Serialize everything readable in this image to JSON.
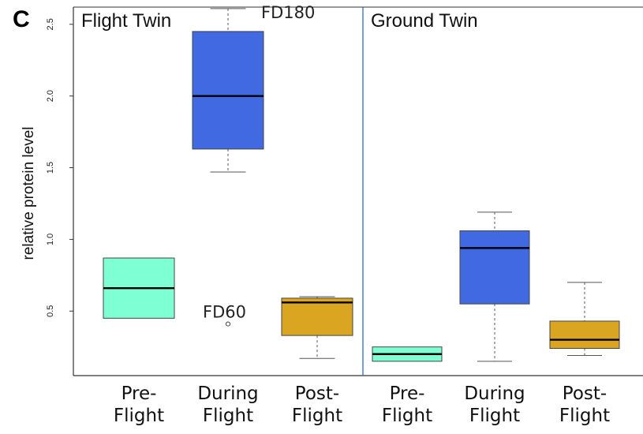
{
  "panel_letter": "C",
  "chart_data": {
    "type": "box",
    "ylabel": "relative protein level",
    "ylim": [
      0.05,
      2.62
    ],
    "yticks": [
      0.5,
      1.0,
      1.5,
      2.0,
      2.5
    ],
    "ytick_labels": [
      "0.5",
      "1.0",
      "1.5",
      "2.0",
      "2.5"
    ],
    "panels": [
      {
        "title": "Flight Twin",
        "categories": [
          {
            "line1": "Pre-",
            "line2": "Flight"
          },
          {
            "line1": "During",
            "line2": "Flight"
          },
          {
            "line1": "Post-",
            "line2": "Flight"
          }
        ],
        "boxes": [
          {
            "whisker_low": 0.45,
            "q1": 0.45,
            "median": 0.66,
            "q3": 0.87,
            "whisker_high": 0.87,
            "outliers": [],
            "color": "#7fffd4"
          },
          {
            "whisker_low": 1.47,
            "q1": 1.63,
            "median": 2.0,
            "q3": 2.45,
            "whisker_high": 2.61,
            "outliers": [
              0.41
            ],
            "color": "#4169e1"
          },
          {
            "whisker_low": 0.17,
            "q1": 0.33,
            "median": 0.56,
            "q3": 0.59,
            "whisker_high": 0.6,
            "outliers": [],
            "color": "#daa520"
          }
        ],
        "annotations": [
          {
            "text": "FD180",
            "box": 1,
            "value": 2.61
          },
          {
            "text": "FD60",
            "box": 1,
            "value": 0.41
          }
        ]
      },
      {
        "title": "Ground Twin",
        "categories": [
          {
            "line1": "Pre-",
            "line2": "Flight"
          },
          {
            "line1": "During",
            "line2": "Flight"
          },
          {
            "line1": "Post-",
            "line2": "Flight"
          }
        ],
        "boxes": [
          {
            "whisker_low": 0.15,
            "q1": 0.15,
            "median": 0.2,
            "q3": 0.25,
            "whisker_high": 0.25,
            "outliers": [],
            "color": "#7fffd4"
          },
          {
            "whisker_low": 0.15,
            "q1": 0.55,
            "median": 0.94,
            "q3": 1.06,
            "whisker_high": 1.19,
            "outliers": [],
            "color": "#4169e1"
          },
          {
            "whisker_low": 0.19,
            "q1": 0.24,
            "median": 0.3,
            "q3": 0.43,
            "whisker_high": 0.7,
            "outliers": [],
            "color": "#daa520"
          }
        ],
        "annotations": []
      }
    ]
  }
}
